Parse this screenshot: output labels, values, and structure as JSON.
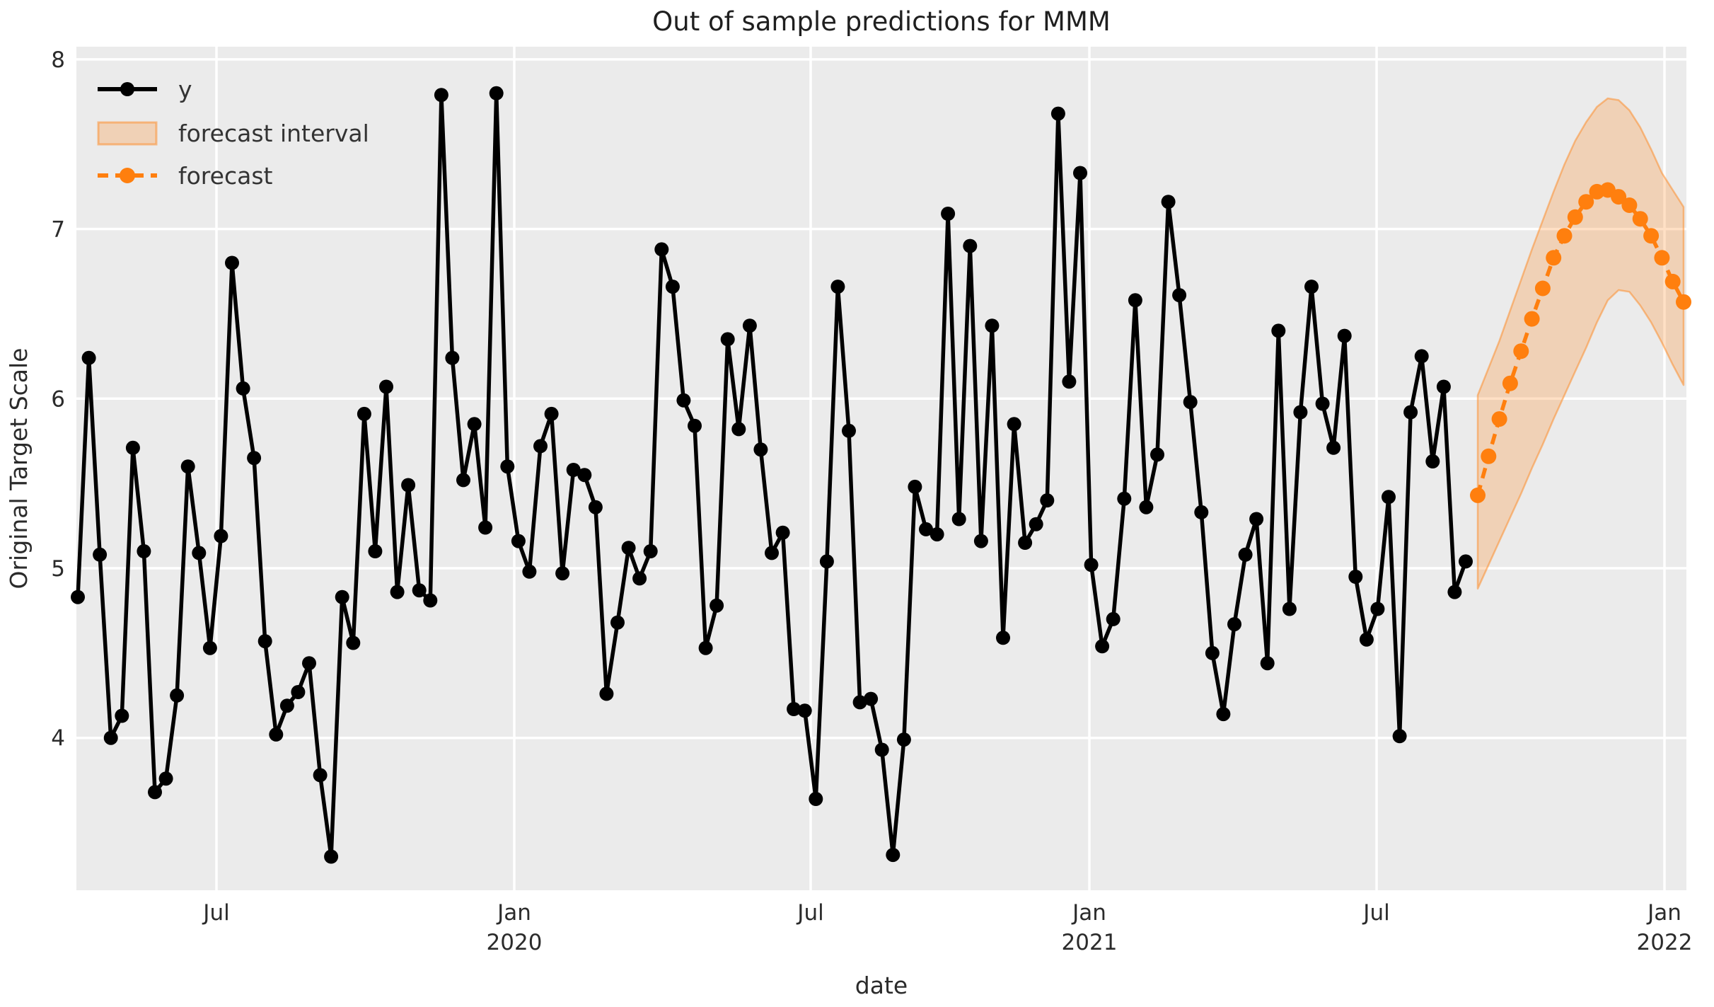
{
  "title": "Out of sample predictions for MMM",
  "axes": {
    "x_label": "date",
    "y_label": "Original Target Scale"
  },
  "legend": {
    "items": [
      {
        "label": "y",
        "swatch": "black-line-marker"
      },
      {
        "label": "forecast interval",
        "swatch": "orange-band-patch"
      },
      {
        "label": "forecast",
        "swatch": "orange-dashed-line-marker"
      }
    ]
  },
  "chart_data": {
    "type": "line",
    "title": "Out of sample predictions for MMM",
    "xlabel": "date",
    "ylabel": "Original Target Scale",
    "ylim": [
      3.1,
      8.05
    ],
    "grid": true,
    "legend_position": "upper left",
    "background": "#ebebeb",
    "gridline_color": "#ffffff",
    "colors": {
      "y_series": "#000000",
      "forecast": "#ff7f0e",
      "interval_fill": "rgba(255,127,14,0.24)",
      "interval_edge": "rgba(255,127,14,0.45)"
    },
    "y_ticks": [
      {
        "v": 8,
        "label": "8"
      },
      {
        "v": 7,
        "label": "7"
      },
      {
        "v": 6,
        "label": "6"
      },
      {
        "v": 5,
        "label": "5"
      },
      {
        "v": 4,
        "label": "4"
      }
    ],
    "x_ticks": [
      {
        "label": "Jul",
        "year": ""
      },
      {
        "label": "Jan",
        "year": "2020"
      },
      {
        "label": "Jul",
        "year": ""
      },
      {
        "label": "Jan",
        "year": "2021"
      },
      {
        "label": "Jul",
        "year": ""
      },
      {
        "label": "Jan",
        "year": "2022"
      }
    ],
    "series": [
      {
        "name": "y",
        "cadence": "weekly",
        "start_date": "2019-04-05",
        "end_date": "2021-09-03",
        "values": [
          4.83,
          6.24,
          5.08,
          4.0,
          4.13,
          5.71,
          5.1,
          3.68,
          3.76,
          4.25,
          5.6,
          5.09,
          4.53,
          5.19,
          6.8,
          6.06,
          5.65,
          4.57,
          4.02,
          4.19,
          4.27,
          4.44,
          3.78,
          3.3,
          4.83,
          4.56,
          5.91,
          5.1,
          6.07,
          4.86,
          5.49,
          4.87,
          4.81,
          7.79,
          6.24,
          5.52,
          5.85,
          5.24,
          7.8,
          5.6,
          5.16,
          4.98,
          5.72,
          5.91,
          4.97,
          5.58,
          5.55,
          5.36,
          4.26,
          4.68,
          5.12,
          4.94,
          5.1,
          6.88,
          6.66,
          5.99,
          5.84,
          4.53,
          4.78,
          6.35,
          5.82,
          6.43,
          5.7,
          5.09,
          5.21,
          4.17,
          4.16,
          3.64,
          5.04,
          6.66,
          5.81,
          4.21,
          4.23,
          3.93,
          3.31,
          3.99,
          5.48,
          5.23,
          5.2,
          7.09,
          5.29,
          6.9,
          5.16,
          6.43,
          4.59,
          5.85,
          5.15,
          5.26,
          5.4,
          7.68,
          6.1,
          7.33,
          5.02,
          4.54,
          4.7,
          5.41,
          6.58,
          5.36,
          5.67,
          7.16,
          6.61,
          5.98,
          5.33,
          4.5,
          4.14,
          4.67,
          5.08,
          5.29,
          4.44,
          6.4,
          4.76,
          5.92,
          6.66,
          5.97,
          5.71,
          6.37,
          4.95,
          4.58,
          4.76,
          5.42,
          4.01,
          5.92,
          6.25,
          5.63,
          6.07,
          4.86,
          5.04
        ]
      },
      {
        "name": "forecast",
        "cadence": "weekly",
        "start_date": "2021-09-10",
        "end_date": "2022-01-21",
        "values": [
          5.43,
          5.66,
          5.88,
          6.09,
          6.28,
          6.47,
          6.65,
          6.83,
          6.96,
          7.07,
          7.16,
          7.22,
          7.23,
          7.19,
          7.14,
          7.06,
          6.96,
          6.83,
          6.69,
          6.57
        ]
      },
      {
        "name": "forecast interval",
        "cadence": "weekly",
        "start_date": "2021-09-10",
        "end_date": "2022-01-21",
        "lower": [
          4.88,
          5.02,
          5.16,
          5.3,
          5.44,
          5.59,
          5.73,
          5.88,
          6.02,
          6.16,
          6.3,
          6.45,
          6.58,
          6.64,
          6.63,
          6.55,
          6.45,
          6.33,
          6.2,
          6.08
        ],
        "upper": [
          6.02,
          6.18,
          6.34,
          6.52,
          6.7,
          6.88,
          7.05,
          7.22,
          7.38,
          7.52,
          7.63,
          7.72,
          7.77,
          7.76,
          7.7,
          7.6,
          7.47,
          7.33,
          7.23,
          7.13
        ]
      }
    ]
  }
}
